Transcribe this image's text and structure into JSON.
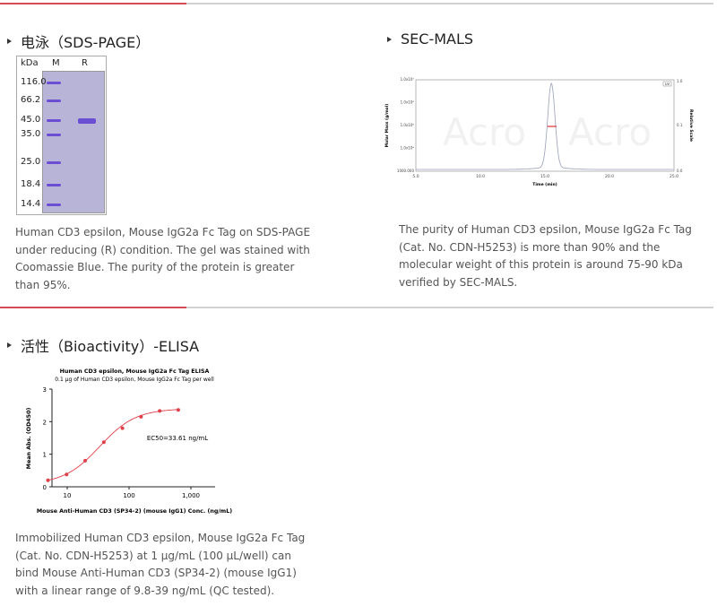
{
  "sections": {
    "sds": {
      "title": "电泳（SDS-PAGE）",
      "text": "Human CD3 epsilon, Mouse IgG2a Fc Tag on SDS-PAGE under reducing (R) condition. The gel was stained with Coomassie Blue. The purity of the protein is greater than 95%.",
      "gel": {
        "unit": "kDa",
        "lanes": [
          "M",
          "R"
        ],
        "markers": [
          "116.0",
          "66.2",
          "45.0",
          "35.0",
          "25.0",
          "18.4",
          "14.4"
        ],
        "band_color": "#6a4fd2"
      }
    },
    "sec": {
      "title": "SEC-MALS",
      "text": "The purity of Human CD3 epsilon, Mouse IgG2a Fc Tag (Cat. No. CDN-H5253) is more than 90% and the molecular weight of this protein is around 75-90 kDa verified by SEC-MALS.",
      "watermark": "Acro"
    },
    "elisa": {
      "title": "活性（Bioactivity）-ELISA",
      "text": "Immobilized Human CD3 epsilon, Mouse IgG2a Fc Tag (Cat. No. CDN-H5253) at 1 μg/mL (100 μL/well) can bind Mouse Anti-Human CD3 (SP34-2) (mouse IgG1) with a linear range of 9.8-39 ng/mL (QC tested)."
    }
  },
  "chart_data": [
    {
      "type": "line",
      "title": "",
      "xlabel": "Time (min)",
      "ylabel": "Molar Mass (g/mol)",
      "y2label": "Relative Scale",
      "xlim": [
        5,
        25
      ],
      "x_ticks": [
        "5.0",
        "10.0",
        "15.0",
        "20.0",
        "25.0"
      ],
      "y_ticks": [
        "1000.000",
        "1.0x10⁴",
        "1.0x10⁵",
        "1.0x10⁶",
        "1.0x10⁷"
      ],
      "y2_ticks": [
        "0.0",
        "0.1",
        "1.0"
      ],
      "legend": "top-right",
      "legend_label": "UV",
      "peak_x": 15.5,
      "line_color": "#9a9fb6",
      "mass_color": "#e03030"
    },
    {
      "type": "scatter",
      "title": "Human CD3 epsilon, Mouse IgG2a Fc Tag ELISA",
      "subtitle": "0.1 μg of Human CD3 epsilon, Mouse IgG2a Fc Tag per well",
      "xlabel": "Mouse Anti-Human CD3 (SP34-2) (mouse IgG1) Conc. (ng/mL)",
      "ylabel": "Mean Abs. (OD450)",
      "x_scale": "log",
      "xlim": [
        3,
        1500
      ],
      "ylim": [
        0,
        3
      ],
      "x_ticks": [
        "10",
        "100",
        "1,000"
      ],
      "y_ticks": [
        "0",
        "1",
        "2",
        "3"
      ],
      "annotation": "EC50=33.61 ng/mL",
      "color": "#e0404a",
      "x": [
        4.88,
        9.77,
        19.5,
        39.1,
        78.1,
        156,
        312.5,
        625
      ],
      "y": [
        0.2,
        0.38,
        0.8,
        1.37,
        1.8,
        2.15,
        2.33,
        2.36
      ]
    }
  ]
}
